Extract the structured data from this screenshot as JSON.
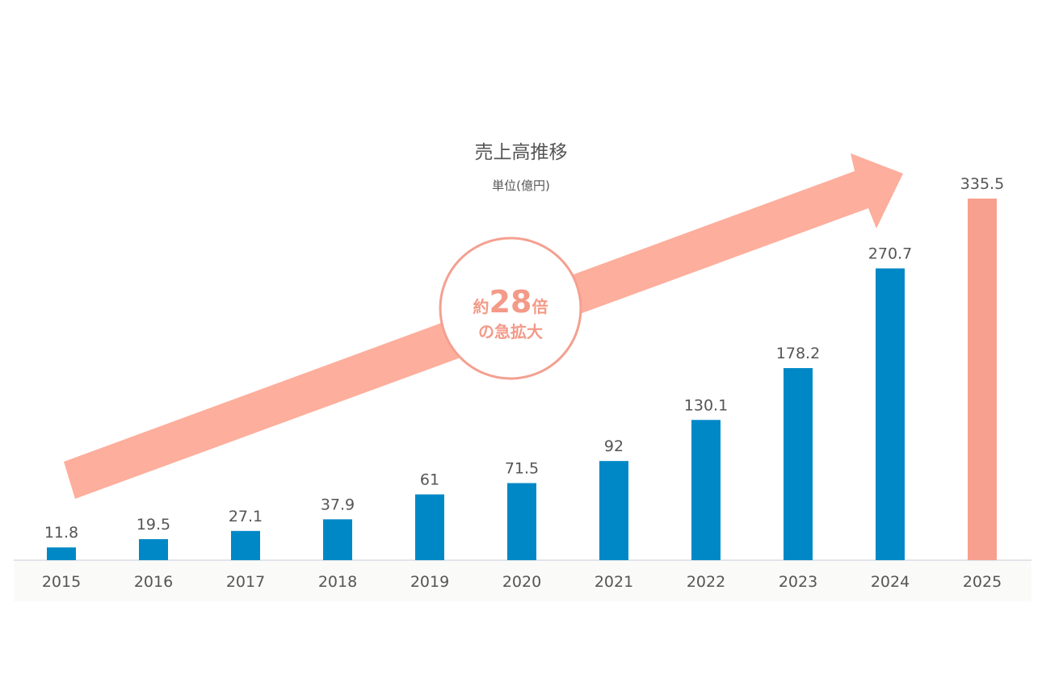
{
  "chart_data": {
    "type": "bar",
    "title": "売上高推移",
    "subtitle": "単位(億円)",
    "categories": [
      "2015",
      "2016",
      "2017",
      "2018",
      "2019",
      "2020",
      "2021",
      "2022",
      "2023",
      "2024",
      "2025"
    ],
    "values": [
      11.8,
      19.5,
      27.1,
      37.9,
      61,
      71.5,
      92,
      130.1,
      178.2,
      270.7,
      335.5
    ],
    "data_labels": [
      "11.8",
      "19.5",
      "27.1",
      "37.9",
      "61",
      "71.5",
      "92",
      "130.1",
      "178.2",
      "270.7",
      "335.5"
    ],
    "ylim": [
      0,
      335.5
    ],
    "grid": false,
    "highlight_category": "2025",
    "annotation": {
      "prefix": "約",
      "number": "28",
      "suffix": "倍",
      "line2": "の急拡大"
    },
    "colors": {
      "bar": "#0088c6",
      "highlight_bar": "#f8a090",
      "arrow": "#fdae9c",
      "circle_stroke": "#f4a090",
      "annotation_text": "#f49a88",
      "text": "#555555",
      "axis_band": "#fafaf8"
    }
  }
}
